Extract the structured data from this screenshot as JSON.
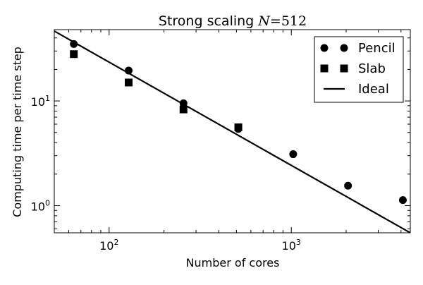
{
  "chart_data": {
    "type": "scatter",
    "title": "Strong scaling N=512",
    "title_parts": {
      "prefix": "Strong scaling ",
      "variable": "N",
      "equals": "=",
      "value": "512"
    },
    "xlabel": "Number of cores",
    "ylabel": "Computing time per time step",
    "x_scale": "log",
    "y_scale": "log",
    "xlim": [
      50,
      4500
    ],
    "ylim": [
      0.55,
      48
    ],
    "grid": false,
    "legend_position": "top-right",
    "x_ticks": [
      {
        "value": 100,
        "base": "10",
        "exp": "2"
      },
      {
        "value": 1000,
        "base": "10",
        "exp": "3"
      }
    ],
    "y_ticks": [
      {
        "value": 1,
        "base": "10",
        "exp": "0"
      },
      {
        "value": 10,
        "base": "10",
        "exp": "1"
      }
    ],
    "series": [
      {
        "name": "Pencil",
        "marker": "circle",
        "color": "#000000",
        "x": [
          64,
          128,
          256,
          512,
          1024,
          2048,
          4096
        ],
        "y": [
          35,
          19.5,
          9.5,
          5.4,
          3.1,
          1.55,
          1.13
        ]
      },
      {
        "name": "Slab",
        "marker": "square",
        "color": "#000000",
        "x": [
          64,
          128,
          256,
          512
        ],
        "y": [
          28,
          15,
          8.3,
          5.6
        ]
      },
      {
        "name": "Ideal",
        "marker": "line",
        "color": "#000000",
        "x": [
          50,
          4500
        ],
        "y": [
          46.5,
          0.55
        ]
      }
    ]
  }
}
